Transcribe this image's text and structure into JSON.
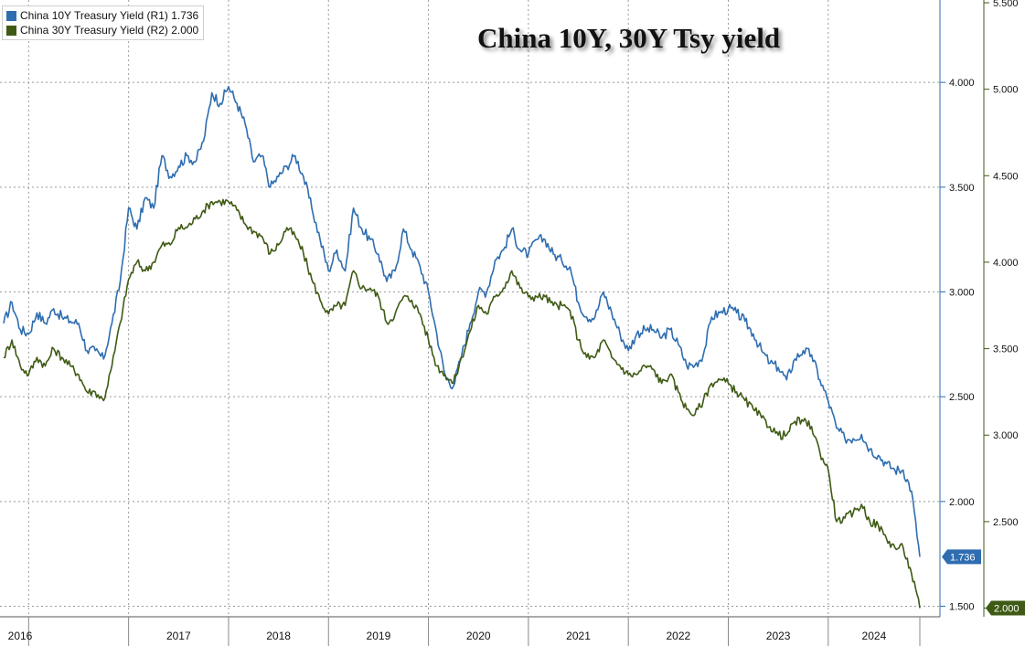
{
  "chart_data": {
    "type": "line",
    "title": "China 10Y, 30Y Tsy yield",
    "x_axis": {
      "tick_labels": [
        "2016",
        "2017",
        "2018",
        "2019",
        "2020",
        "2021",
        "2022",
        "2023",
        "2024"
      ],
      "range": [
        "2015-10",
        "2024-12"
      ]
    },
    "y_axes": [
      {
        "id": "R1",
        "ticks": [
          1.5,
          2.0,
          2.5,
          3.0,
          3.5,
          4.0
        ],
        "tick_labels": [
          "1.500",
          "2.000",
          "2.500",
          "3.000",
          "3.500",
          "4.000"
        ],
        "range": [
          1.45,
          4.38
        ]
      },
      {
        "id": "R2",
        "ticks": [
          2.0,
          2.5,
          3.0,
          3.5,
          4.0,
          4.5,
          5.0,
          5.5
        ],
        "tick_labels": [
          "2.000",
          "2.500",
          "3.000",
          "3.500",
          "4.000",
          "4.500",
          "5.000",
          "5.500"
        ],
        "range": [
          1.95,
          5.5
        ]
      }
    ],
    "grid": true,
    "legend_position": "top-left",
    "series": [
      {
        "name": "China 10Y Treasury Yield (R1)",
        "legend_value": "1.736",
        "last_label": "1.736",
        "axis": "R1",
        "color": "#2e6db0",
        "points": [
          [
            "2015-10",
            2.85
          ],
          [
            "2015-11",
            2.95
          ],
          [
            "2015-12",
            2.82
          ],
          [
            "2016-01",
            2.8
          ],
          [
            "2016-02",
            2.9
          ],
          [
            "2016-03",
            2.85
          ],
          [
            "2016-04",
            2.92
          ],
          [
            "2016-05",
            2.88
          ],
          [
            "2016-06",
            2.86
          ],
          [
            "2016-07",
            2.85
          ],
          [
            "2016-08",
            2.72
          ],
          [
            "2016-09",
            2.72
          ],
          [
            "2016-10",
            2.68
          ],
          [
            "2016-11",
            2.85
          ],
          [
            "2016-12",
            3.05
          ],
          [
            "2017-01",
            3.4
          ],
          [
            "2017-02",
            3.3
          ],
          [
            "2017-03",
            3.45
          ],
          [
            "2017-04",
            3.4
          ],
          [
            "2017-05",
            3.65
          ],
          [
            "2017-06",
            3.55
          ],
          [
            "2017-07",
            3.6
          ],
          [
            "2017-08",
            3.65
          ],
          [
            "2017-09",
            3.62
          ],
          [
            "2017-10",
            3.72
          ],
          [
            "2017-11",
            3.95
          ],
          [
            "2017-12",
            3.9
          ],
          [
            "2018-01",
            3.98
          ],
          [
            "2018-02",
            3.9
          ],
          [
            "2018-03",
            3.8
          ],
          [
            "2018-04",
            3.62
          ],
          [
            "2018-05",
            3.65
          ],
          [
            "2018-06",
            3.5
          ],
          [
            "2018-07",
            3.55
          ],
          [
            "2018-08",
            3.6
          ],
          [
            "2018-09",
            3.65
          ],
          [
            "2018-10",
            3.55
          ],
          [
            "2018-11",
            3.4
          ],
          [
            "2018-12",
            3.25
          ],
          [
            "2019-01",
            3.1
          ],
          [
            "2019-02",
            3.2
          ],
          [
            "2019-03",
            3.1
          ],
          [
            "2019-04",
            3.4
          ],
          [
            "2019-05",
            3.3
          ],
          [
            "2019-06",
            3.25
          ],
          [
            "2019-07",
            3.18
          ],
          [
            "2019-08",
            3.05
          ],
          [
            "2019-09",
            3.1
          ],
          [
            "2019-10",
            3.3
          ],
          [
            "2019-11",
            3.2
          ],
          [
            "2019-12",
            3.12
          ],
          [
            "2020-01",
            3.0
          ],
          [
            "2020-02",
            2.8
          ],
          [
            "2020-03",
            2.6
          ],
          [
            "2020-04",
            2.55
          ],
          [
            "2020-05",
            2.7
          ],
          [
            "2020-06",
            2.85
          ],
          [
            "2020-07",
            3.0
          ],
          [
            "2020-08",
            3.0
          ],
          [
            "2020-09",
            3.15
          ],
          [
            "2020-10",
            3.2
          ],
          [
            "2020-11",
            3.3
          ],
          [
            "2020-12",
            3.2
          ],
          [
            "2021-01",
            3.18
          ],
          [
            "2021-02",
            3.25
          ],
          [
            "2021-03",
            3.25
          ],
          [
            "2021-04",
            3.18
          ],
          [
            "2021-05",
            3.15
          ],
          [
            "2021-06",
            3.12
          ],
          [
            "2021-07",
            2.95
          ],
          [
            "2021-08",
            2.88
          ],
          [
            "2021-09",
            2.88
          ],
          [
            "2021-10",
            3.0
          ],
          [
            "2021-11",
            2.9
          ],
          [
            "2021-12",
            2.8
          ],
          [
            "2022-01",
            2.72
          ],
          [
            "2022-02",
            2.8
          ],
          [
            "2022-03",
            2.82
          ],
          [
            "2022-04",
            2.82
          ],
          [
            "2022-05",
            2.78
          ],
          [
            "2022-06",
            2.82
          ],
          [
            "2022-07",
            2.75
          ],
          [
            "2022-08",
            2.65
          ],
          [
            "2022-09",
            2.65
          ],
          [
            "2022-10",
            2.7
          ],
          [
            "2022-11",
            2.88
          ],
          [
            "2022-12",
            2.9
          ],
          [
            "2023-01",
            2.92
          ],
          [
            "2023-02",
            2.9
          ],
          [
            "2023-03",
            2.86
          ],
          [
            "2023-04",
            2.8
          ],
          [
            "2023-05",
            2.72
          ],
          [
            "2023-06",
            2.66
          ],
          [
            "2023-07",
            2.64
          ],
          [
            "2023-08",
            2.58
          ],
          [
            "2023-09",
            2.68
          ],
          [
            "2023-10",
            2.72
          ],
          [
            "2023-11",
            2.7
          ],
          [
            "2023-12",
            2.58
          ],
          [
            "2024-01",
            2.48
          ],
          [
            "2024-02",
            2.35
          ],
          [
            "2024-03",
            2.3
          ],
          [
            "2024-04",
            2.3
          ],
          [
            "2024-05",
            2.32
          ],
          [
            "2024-06",
            2.25
          ],
          [
            "2024-07",
            2.22
          ],
          [
            "2024-08",
            2.18
          ],
          [
            "2024-09",
            2.15
          ],
          [
            "2024-10",
            2.15
          ],
          [
            "2024-11",
            2.05
          ],
          [
            "2024-12",
            1.736
          ]
        ]
      },
      {
        "name": "China 30Y Treasury Yield (R2)",
        "legend_value": "2.000",
        "last_label": "2.000",
        "axis": "R2",
        "color": "#3f5a14",
        "points": [
          [
            "2015-10",
            3.45
          ],
          [
            "2015-11",
            3.55
          ],
          [
            "2015-12",
            3.4
          ],
          [
            "2016-01",
            3.35
          ],
          [
            "2016-02",
            3.45
          ],
          [
            "2016-03",
            3.4
          ],
          [
            "2016-04",
            3.5
          ],
          [
            "2016-05",
            3.45
          ],
          [
            "2016-06",
            3.4
          ],
          [
            "2016-07",
            3.35
          ],
          [
            "2016-08",
            3.25
          ],
          [
            "2016-09",
            3.25
          ],
          [
            "2016-10",
            3.2
          ],
          [
            "2016-11",
            3.4
          ],
          [
            "2016-12",
            3.65
          ],
          [
            "2017-01",
            3.9
          ],
          [
            "2017-02",
            4.0
          ],
          [
            "2017-03",
            3.95
          ],
          [
            "2017-04",
            4.0
          ],
          [
            "2017-05",
            4.1
          ],
          [
            "2017-06",
            4.1
          ],
          [
            "2017-07",
            4.2
          ],
          [
            "2017-08",
            4.2
          ],
          [
            "2017-09",
            4.25
          ],
          [
            "2017-10",
            4.3
          ],
          [
            "2017-11",
            4.35
          ],
          [
            "2017-12",
            4.35
          ],
          [
            "2018-01",
            4.35
          ],
          [
            "2018-02",
            4.3
          ],
          [
            "2018-03",
            4.22
          ],
          [
            "2018-04",
            4.18
          ],
          [
            "2018-05",
            4.15
          ],
          [
            "2018-06",
            4.05
          ],
          [
            "2018-07",
            4.1
          ],
          [
            "2018-08",
            4.2
          ],
          [
            "2018-09",
            4.15
          ],
          [
            "2018-10",
            4.05
          ],
          [
            "2018-11",
            3.9
          ],
          [
            "2018-12",
            3.78
          ],
          [
            "2019-01",
            3.7
          ],
          [
            "2019-02",
            3.75
          ],
          [
            "2019-03",
            3.75
          ],
          [
            "2019-04",
            3.95
          ],
          [
            "2019-05",
            3.85
          ],
          [
            "2019-06",
            3.85
          ],
          [
            "2019-07",
            3.8
          ],
          [
            "2019-08",
            3.65
          ],
          [
            "2019-09",
            3.7
          ],
          [
            "2019-10",
            3.8
          ],
          [
            "2019-11",
            3.78
          ],
          [
            "2019-12",
            3.7
          ],
          [
            "2020-01",
            3.55
          ],
          [
            "2020-02",
            3.4
          ],
          [
            "2020-03",
            3.35
          ],
          [
            "2020-04",
            3.3
          ],
          [
            "2020-05",
            3.45
          ],
          [
            "2020-06",
            3.6
          ],
          [
            "2020-07",
            3.75
          ],
          [
            "2020-08",
            3.7
          ],
          [
            "2020-09",
            3.8
          ],
          [
            "2020-10",
            3.85
          ],
          [
            "2020-11",
            3.95
          ],
          [
            "2020-12",
            3.85
          ],
          [
            "2021-01",
            3.8
          ],
          [
            "2021-02",
            3.8
          ],
          [
            "2021-03",
            3.8
          ],
          [
            "2021-04",
            3.75
          ],
          [
            "2021-05",
            3.75
          ],
          [
            "2021-06",
            3.72
          ],
          [
            "2021-07",
            3.55
          ],
          [
            "2021-08",
            3.45
          ],
          [
            "2021-09",
            3.45
          ],
          [
            "2021-10",
            3.55
          ],
          [
            "2021-11",
            3.45
          ],
          [
            "2021-12",
            3.4
          ],
          [
            "2022-01",
            3.35
          ],
          [
            "2022-02",
            3.35
          ],
          [
            "2022-03",
            3.4
          ],
          [
            "2022-04",
            3.38
          ],
          [
            "2022-05",
            3.3
          ],
          [
            "2022-06",
            3.35
          ],
          [
            "2022-07",
            3.25
          ],
          [
            "2022-08",
            3.15
          ],
          [
            "2022-09",
            3.12
          ],
          [
            "2022-10",
            3.2
          ],
          [
            "2022-11",
            3.3
          ],
          [
            "2022-12",
            3.32
          ],
          [
            "2023-01",
            3.3
          ],
          [
            "2023-02",
            3.25
          ],
          [
            "2023-03",
            3.2
          ],
          [
            "2023-04",
            3.15
          ],
          [
            "2023-05",
            3.1
          ],
          [
            "2023-06",
            3.05
          ],
          [
            "2023-07",
            3.0
          ],
          [
            "2023-08",
            3.0
          ],
          [
            "2023-09",
            3.08
          ],
          [
            "2023-10",
            3.08
          ],
          [
            "2023-11",
            3.05
          ],
          [
            "2023-12",
            2.9
          ],
          [
            "2024-01",
            2.8
          ],
          [
            "2024-02",
            2.5
          ],
          [
            "2024-03",
            2.52
          ],
          [
            "2024-04",
            2.55
          ],
          [
            "2024-05",
            2.6
          ],
          [
            "2024-06",
            2.5
          ],
          [
            "2024-07",
            2.48
          ],
          [
            "2024-08",
            2.4
          ],
          [
            "2024-09",
            2.35
          ],
          [
            "2024-10",
            2.35
          ],
          [
            "2024-11",
            2.2
          ],
          [
            "2024-12",
            2.0
          ]
        ]
      }
    ]
  }
}
